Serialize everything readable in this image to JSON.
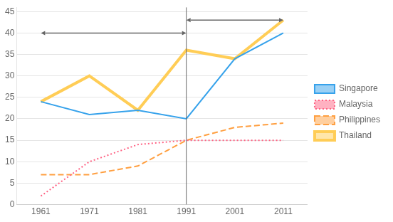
{
  "chart_data": {
    "type": "line",
    "x": [
      1961,
      1971,
      1981,
      1991,
      2001,
      2011
    ],
    "series": [
      {
        "name": "Singapore",
        "values": [
          24,
          21,
          22,
          20,
          34,
          40
        ],
        "line_style": "solid"
      },
      {
        "name": "Malaysia",
        "values": [
          2,
          10,
          14,
          15,
          15,
          15
        ],
        "line_style": "dotted"
      },
      {
        "name": "Philippines",
        "values": [
          7,
          7,
          9,
          15,
          18,
          19
        ],
        "line_style": "dashed"
      },
      {
        "name": "Thailand",
        "values": [
          24,
          30,
          22,
          36,
          34,
          43
        ],
        "line_style": "solid"
      }
    ],
    "xlim": [
      1956,
      2016
    ],
    "xticks": [
      1961,
      1971,
      1981,
      1991,
      2001,
      2011
    ],
    "ylim": [
      0,
      46
    ],
    "yticks": [
      0,
      5,
      10,
      15,
      20,
      25,
      30,
      35,
      40,
      45
    ],
    "grid": "y",
    "legend": "right",
    "vline": 1991,
    "arrows": [
      {
        "from": 1961,
        "to": 1991,
        "y": 40
      },
      {
        "from": 1991,
        "to": 2011,
        "y": 43
      }
    ]
  }
}
